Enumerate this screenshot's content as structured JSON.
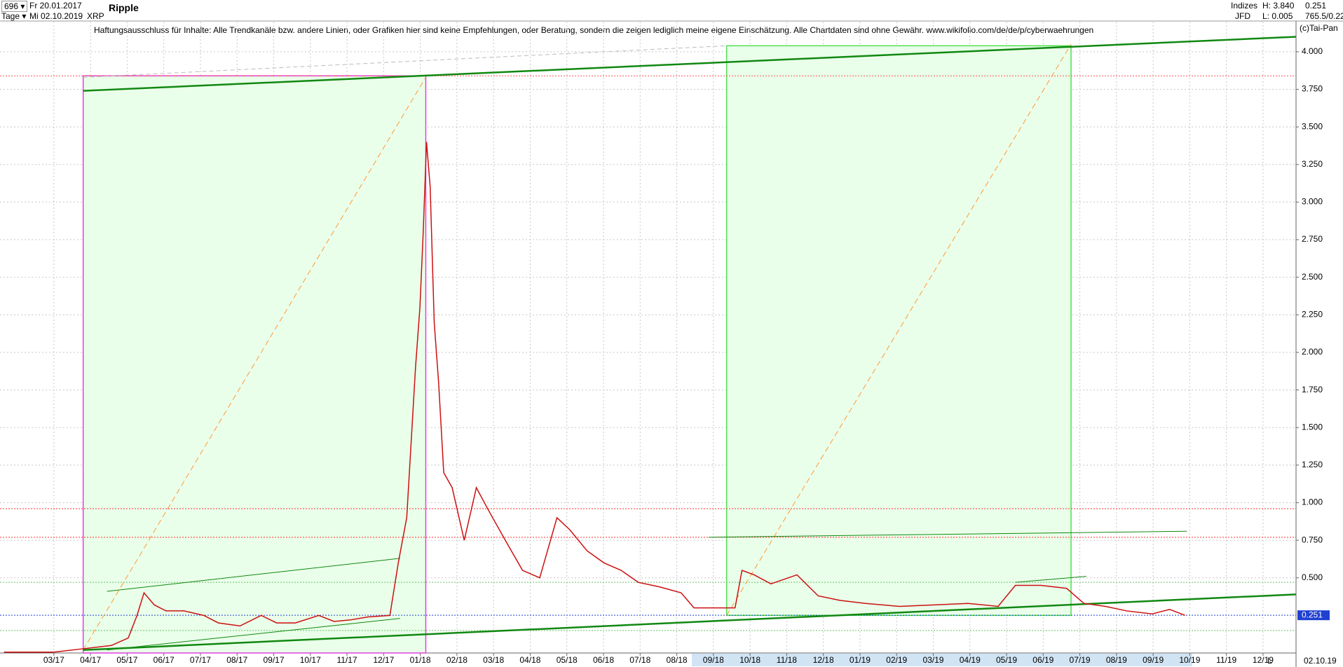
{
  "header": {
    "count": "696",
    "from": "Fr 20.01.2017",
    "period": "Tage",
    "to": "Mi 02.10.2019",
    "symbol": "XRP",
    "name": "Ripple",
    "group": "Indizes",
    "source": "JFD",
    "high": "H: 3.840",
    "low": "L: 0.005",
    "last": "0.251",
    "extra": "765.5/0.22",
    "copyright": "(c)Tai-Pan",
    "end_date": "02.10.19",
    "scale_mode": "L"
  },
  "chart_data": {
    "type": "line",
    "annotation": "Haftungsausschluss für Inhalte: Alle Trendkanäle bzw. andere Linien, oder Grafiken hier sind keine Empfehlungen, oder Beratung, sondern die zeigen lediglich meine eigene Einschätzung. Alle Chartdaten sind ohne Gewähr.  www.wikifolio.com/de/de/p/cyberwaehrungen",
    "x": [
      -1.36,
      0,
      0.87,
      1.57,
      2.03,
      2.27,
      2.46,
      2.74,
      3.06,
      3.55,
      4.09,
      4.49,
      5.08,
      5.66,
      6.08,
      6.59,
      7.23,
      7.65,
      8.09,
      8.58,
      9.17,
      9.4,
      9.63,
      9.87,
      9.99,
      10.08,
      10.17,
      10.27,
      10.38,
      10.5,
      10.64,
      10.87,
      11.2,
      11.53,
      11.86,
      12.32,
      12.79,
      13.26,
      13.73,
      14.08,
      14.55,
      15.01,
      15.48,
      15.95,
      16.53,
      17.12,
      17.47,
      18.05,
      18.59,
      18.78,
      19.11,
      19.57,
      20.28,
      20.86,
      21.45,
      22.15,
      23.08,
      24.02,
      24.95,
      25.77,
      26.24,
      26.94,
      27.64,
      28.11,
      28.7,
      29.28,
      29.98,
      30.45,
      30.87
    ],
    "series": [
      {
        "name": "XRP",
        "color": "#cc1010",
        "values": [
          0.006,
          0.006,
          0.03,
          0.05,
          0.1,
          0.25,
          0.4,
          0.32,
          0.28,
          0.28,
          0.25,
          0.2,
          0.18,
          0.25,
          0.2,
          0.2,
          0.25,
          0.21,
          0.22,
          0.24,
          0.25,
          0.6,
          0.9,
          1.9,
          2.3,
          2.8,
          3.4,
          3.1,
          2.2,
          1.8,
          1.2,
          1.1,
          0.75,
          1.1,
          0.95,
          0.75,
          0.55,
          0.5,
          0.9,
          0.82,
          0.68,
          0.6,
          0.55,
          0.47,
          0.44,
          0.4,
          0.3,
          0.3,
          0.3,
          0.55,
          0.52,
          0.46,
          0.52,
          0.38,
          0.35,
          0.33,
          0.31,
          0.32,
          0.33,
          0.31,
          0.45,
          0.45,
          0.43,
          0.33,
          0.31,
          0.28,
          0.26,
          0.29,
          0.251
        ]
      }
    ],
    "xlim": [
      -1.47,
      33.9
    ],
    "xticks": [
      {
        "value": 0,
        "label": "03/17"
      },
      {
        "value": 1,
        "label": "04/17"
      },
      {
        "value": 2,
        "label": "05/17"
      },
      {
        "value": 3,
        "label": "06/17"
      },
      {
        "value": 4,
        "label": "07/17"
      },
      {
        "value": 5,
        "label": "08/17"
      },
      {
        "value": 6,
        "label": "09/17"
      },
      {
        "value": 7,
        "label": "10/17"
      },
      {
        "value": 8,
        "label": "11/17"
      },
      {
        "value": 9,
        "label": "12/17"
      },
      {
        "value": 10,
        "label": "01/18"
      },
      {
        "value": 11,
        "label": "02/18"
      },
      {
        "value": 12,
        "label": "03/18"
      },
      {
        "value": 13,
        "label": "04/18"
      },
      {
        "value": 14,
        "label": "05/18"
      },
      {
        "value": 15,
        "label": "06/18"
      },
      {
        "value": 16,
        "label": "07/18"
      },
      {
        "value": 17,
        "label": "08/18"
      },
      {
        "value": 18,
        "label": "09/18"
      },
      {
        "value": 19,
        "label": "10/18"
      },
      {
        "value": 20,
        "label": "11/18"
      },
      {
        "value": 21,
        "label": "12/18"
      },
      {
        "value": 22,
        "label": "01/19"
      },
      {
        "value": 23,
        "label": "02/19"
      },
      {
        "value": 24,
        "label": "03/19"
      },
      {
        "value": 25,
        "label": "04/19"
      },
      {
        "value": 26,
        "label": "05/19"
      },
      {
        "value": 27,
        "label": "06/19"
      },
      {
        "value": 28,
        "label": "07/19"
      },
      {
        "value": 29,
        "label": "08/19"
      },
      {
        "value": 30,
        "label": "09/19"
      },
      {
        "value": 31,
        "label": "10/19"
      },
      {
        "value": 32,
        "label": "11/19"
      },
      {
        "value": 33,
        "label": "12/19"
      }
    ],
    "ylim": [
      0,
      4.2
    ],
    "yticks": [
      {
        "value": 0.5,
        "label": "0.500"
      },
      {
        "value": 0.75,
        "label": "0.750"
      },
      {
        "value": 1,
        "label": "1.000"
      },
      {
        "value": 1.25,
        "label": "1.250"
      },
      {
        "value": 1.5,
        "label": "1.500"
      },
      {
        "value": 1.75,
        "label": "1.750"
      },
      {
        "value": 2,
        "label": "2.000"
      },
      {
        "value": 2.25,
        "label": "2.250"
      },
      {
        "value": 2.5,
        "label": "2.500"
      },
      {
        "value": 2.75,
        "label": "2.750"
      },
      {
        "value": 3,
        "label": "3.000"
      },
      {
        "value": 3.25,
        "label": "3.250"
      },
      {
        "value": 3.5,
        "label": "3.500"
      },
      {
        "value": 3.75,
        "label": "3.750"
      },
      {
        "value": 4,
        "label": "4.000"
      }
    ],
    "grid": true,
    "levels": [
      {
        "value": 3.84,
        "color": "#ff5050"
      },
      {
        "value": 0.96,
        "color": "#ff3030"
      },
      {
        "value": 0.77,
        "color": "#ff3030"
      },
      {
        "value": 0.47,
        "color": "#60c060"
      },
      {
        "value": 0.15,
        "color": "#60c060"
      },
      {
        "value": 0.251,
        "color": "#2040d0",
        "value_label": "0.251"
      }
    ],
    "zones": [
      {
        "x": [
          0.8,
          10.15
        ],
        "y": [
          0,
          3.84
        ],
        "stroke": "#e040e0",
        "fill": "#eaffea"
      },
      {
        "x": [
          18.36,
          27.76
        ],
        "y": [
          0.25,
          4.04
        ],
        "stroke": "#50e050",
        "fill": "#eaffea"
      }
    ],
    "trendlines": [
      {
        "x": [
          0.8,
          10.15
        ],
        "y": [
          0.02,
          3.83
        ],
        "color": "#ff9933",
        "width": 1,
        "dash": "8 5"
      },
      {
        "x": [
          18.36,
          27.76
        ],
        "y": [
          0.25,
          4.05
        ],
        "color": "#ff9933",
        "width": 1,
        "dash": "8 5"
      },
      {
        "x": [
          0.8,
          33.9
        ],
        "y": [
          3.74,
          4.1
        ],
        "color": "#118811",
        "width": 2.5,
        "dash": "none"
      },
      {
        "x": [
          0.8,
          33.9
        ],
        "y": [
          0.02,
          0.39
        ],
        "color": "#118811",
        "width": 2.5,
        "dash": "none"
      },
      {
        "x": [
          1.45,
          9.45
        ],
        "y": [
          0.41,
          0.63
        ],
        "color": "#118811",
        "width": 1,
        "dash": "none"
      },
      {
        "x": [
          1.45,
          9.45
        ],
        "y": [
          0.02,
          0.23
        ],
        "color": "#118811",
        "width": 1,
        "dash": "none"
      },
      {
        "x": [
          17.87,
          30.92
        ],
        "y": [
          0.77,
          0.81
        ],
        "color": "#118811",
        "width": 1,
        "dash": "none"
      },
      {
        "x": [
          26.24,
          28.18
        ],
        "y": [
          0.47,
          0.51
        ],
        "color": "#118811",
        "width": 1,
        "dash": "none"
      },
      {
        "x": [
          0.8,
          18.36
        ],
        "y": [
          3.83,
          4.04
        ],
        "color": "#bbbbbb",
        "width": 1,
        "dash": "6 4"
      }
    ]
  }
}
